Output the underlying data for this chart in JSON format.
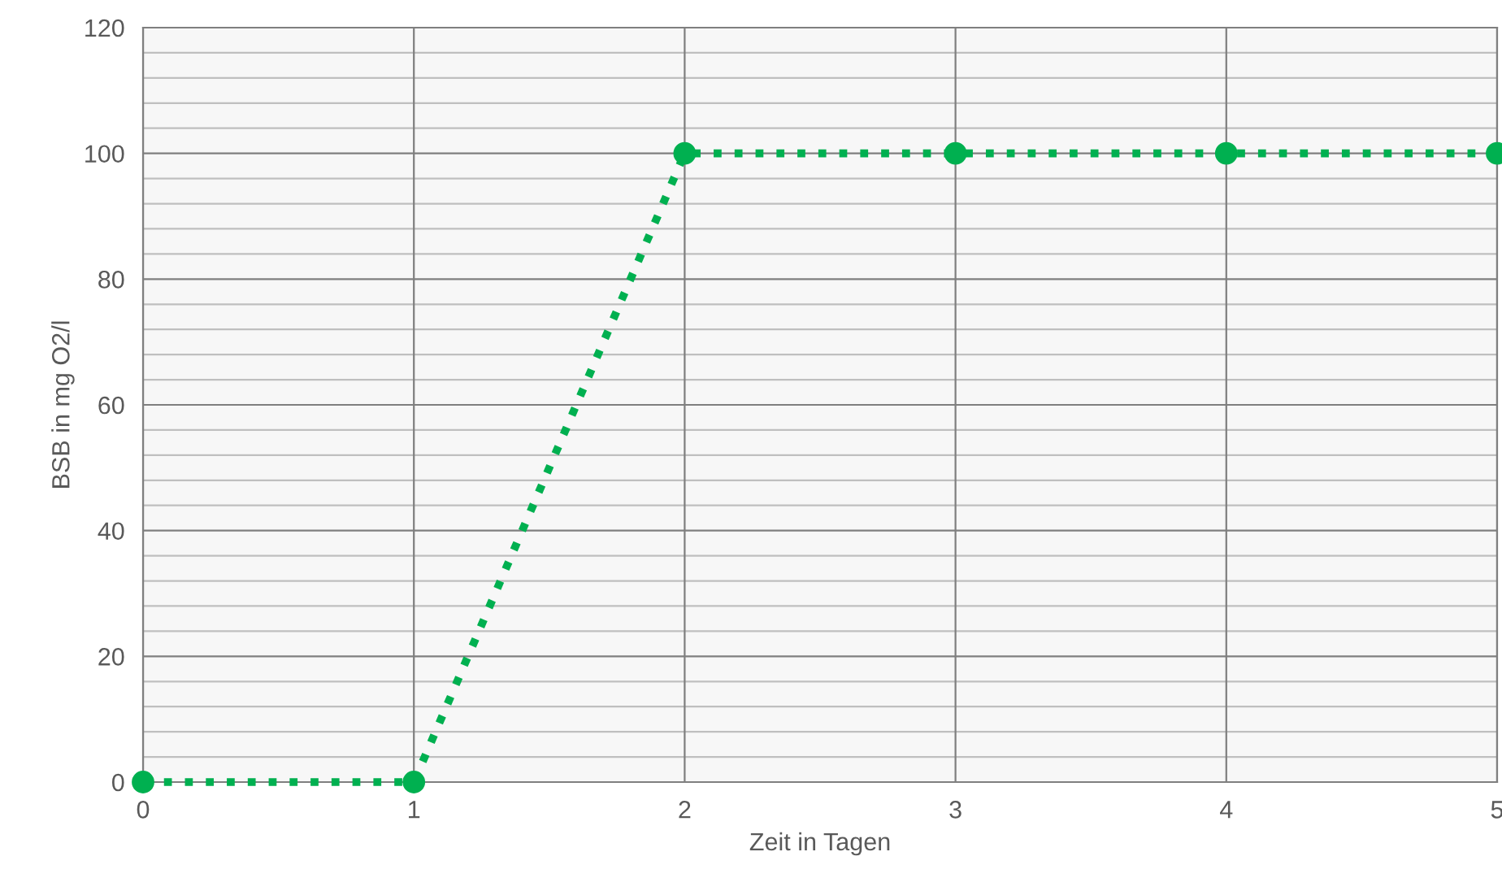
{
  "chart_data": {
    "type": "line",
    "xlabel": "Zeit in Tagen",
    "ylabel": "BSB in mg O2/l",
    "x": [
      0,
      1,
      2,
      3,
      4,
      5
    ],
    "series": [
      {
        "color": "#00b050",
        "values": [
          0,
          0,
          100,
          100,
          100,
          100
        ]
      }
    ],
    "xlim": [
      0,
      5
    ],
    "xticks": [
      0,
      1,
      2,
      3,
      4,
      5
    ],
    "ylim": [
      0,
      120
    ],
    "yticks": [
      0,
      {
        "value": 4,
        "label": null
      },
      {
        "value": 8,
        "label": null
      },
      {
        "value": 12,
        "label": null
      },
      {
        "value": 16,
        "label": null
      },
      20,
      {
        "value": 24,
        "label": null
      },
      {
        "value": 28,
        "label": null
      },
      {
        "value": 32,
        "label": null
      },
      {
        "value": 36,
        "label": null
      },
      40,
      {
        "value": 44,
        "label": null
      },
      {
        "value": 48,
        "label": null
      },
      {
        "value": 52,
        "label": null
      },
      {
        "value": 56,
        "label": null
      },
      60,
      {
        "value": 64,
        "label": null
      },
      {
        "value": 68,
        "label": null
      },
      {
        "value": 72,
        "label": null
      },
      {
        "value": 76,
        "label": null
      },
      80,
      {
        "value": 84,
        "label": null
      },
      {
        "value": 88,
        "label": null
      },
      {
        "value": 92,
        "label": null
      },
      {
        "value": 96,
        "label": null
      },
      100,
      {
        "value": 104,
        "label": null
      },
      {
        "value": 108,
        "label": null
      },
      {
        "value": 112,
        "label": null
      },
      {
        "value": 116,
        "label": null
      },
      120
    ],
    "grid": true,
    "marker": "circle",
    "line_style": "dotted"
  }
}
